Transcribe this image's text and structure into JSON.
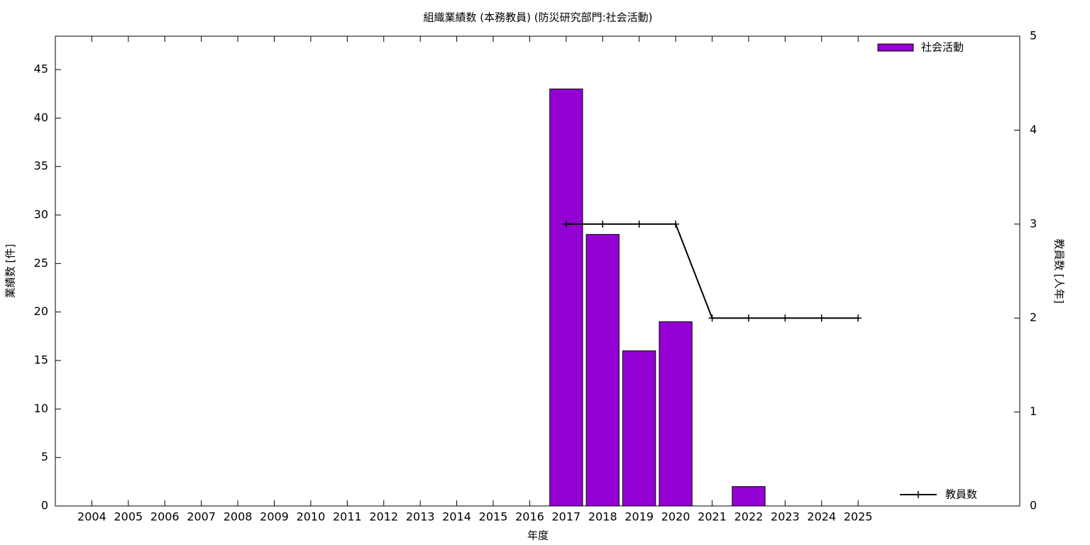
{
  "chart_data": {
    "type": "bar",
    "title": "組織業績数 (本務教員) (防災研究部門:社会活動)",
    "x_label": "年度",
    "y_label": "業績数 [件]",
    "y2_label": "教員数 [人年]",
    "x": [
      2004,
      2005,
      2006,
      2007,
      2008,
      2009,
      2010,
      2011,
      2012,
      2013,
      2014,
      2015,
      2016,
      2017,
      2018,
      2019,
      2020,
      2021,
      2022,
      2023,
      2024,
      2025
    ],
    "xlim": [
      2003,
      2029.43
    ],
    "xticks": [
      2004,
      2005,
      2006,
      2007,
      2008,
      2009,
      2010,
      2011,
      2012,
      2013,
      2014,
      2015,
      2016,
      2017,
      2018,
      2019,
      2020,
      2021,
      2022,
      2023,
      2024,
      2025
    ],
    "ylim": [
      0,
      48.44
    ],
    "yticks": [
      0,
      5,
      10,
      15,
      20,
      25,
      30,
      35,
      40,
      45
    ],
    "y2lim": [
      0,
      5
    ],
    "y2ticks": [
      0,
      1,
      2,
      3,
      4,
      5
    ],
    "series": [
      {
        "name": "社会活動",
        "type": "bar",
        "color": "#9400d3",
        "legend": "top-right",
        "values": [
          0,
          0,
          0,
          0,
          0,
          0,
          0,
          0,
          0,
          0,
          0,
          0,
          0,
          43,
          28,
          16,
          19,
          0,
          2,
          0,
          0,
          0
        ]
      },
      {
        "name": "教員数",
        "type": "line",
        "color": "#000000",
        "axis": "y2",
        "legend": "bottom-right",
        "values": [
          null,
          null,
          null,
          null,
          null,
          null,
          null,
          null,
          null,
          null,
          null,
          null,
          null,
          3,
          3,
          3,
          3,
          2,
          2,
          2,
          2,
          2
        ]
      }
    ]
  }
}
